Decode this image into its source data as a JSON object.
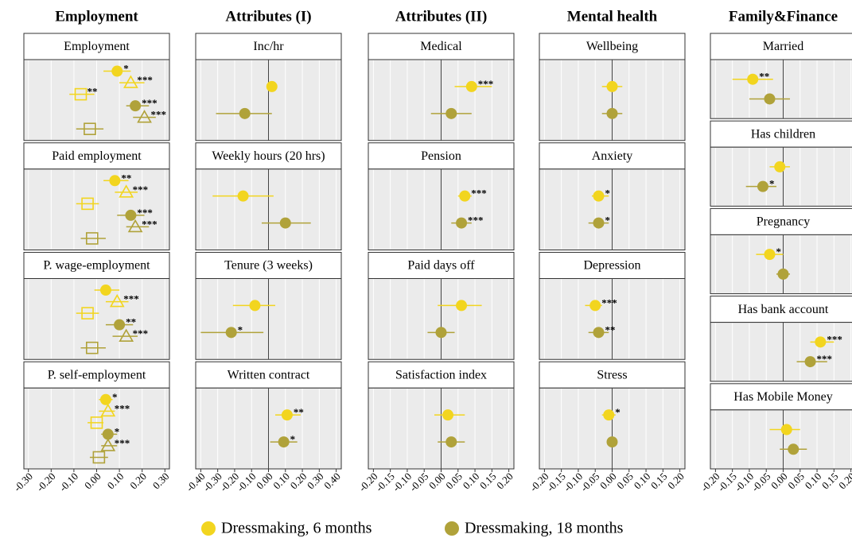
{
  "chart_data": [
    {
      "type": "dot",
      "title": "Employment",
      "zero_line": false,
      "xlim": [
        -0.32,
        0.32
      ],
      "xticks": [
        {
          "value": -0.3,
          "label": "-0.30"
        },
        {
          "value": -0.2,
          "label": "-0.20"
        },
        {
          "value": -0.1,
          "label": "-0.10"
        },
        {
          "value": 0,
          "label": "0.00"
        },
        {
          "value": 0.1,
          "label": "0.10"
        },
        {
          "value": 0.2,
          "label": "0.20"
        },
        {
          "value": 0.3,
          "label": "0.30"
        }
      ],
      "panels": [
        {
          "title": "Employment",
          "points": [
            {
              "marker": "circle",
              "color": "#f2d51f",
              "value": 0.09,
              "ci": [
                0.03,
                0.15
              ],
              "stars": "*"
            },
            {
              "marker": "triangle",
              "color": "#f2d51f",
              "value": 0.15,
              "ci": [
                0.1,
                0.21
              ],
              "stars": "***"
            },
            {
              "marker": "square",
              "color": "#f2d51f",
              "value": -0.07,
              "ci": [
                -0.12,
                -0.01
              ],
              "stars": "**"
            },
            {
              "marker": "circle",
              "color": "#b0a23a",
              "value": 0.17,
              "ci": [
                0.13,
                0.23
              ],
              "stars": "***"
            },
            {
              "marker": "triangle",
              "color": "#b0a23a",
              "value": 0.21,
              "ci": [
                0.16,
                0.26
              ],
              "stars": "***"
            },
            {
              "marker": "square",
              "color": "#b0a23a",
              "value": -0.03,
              "ci": [
                -0.09,
                0.03
              ]
            }
          ]
        },
        {
          "title": "Paid employment",
          "points": [
            {
              "marker": "circle",
              "color": "#f2d51f",
              "value": 0.08,
              "ci": [
                0.03,
                0.14
              ],
              "stars": "**"
            },
            {
              "marker": "triangle",
              "color": "#f2d51f",
              "value": 0.13,
              "ci": [
                0.08,
                0.18
              ],
              "stars": "***"
            },
            {
              "marker": "square",
              "color": "#f2d51f",
              "value": -0.04,
              "ci": [
                -0.09,
                0.01
              ]
            },
            {
              "marker": "circle",
              "color": "#b0a23a",
              "value": 0.15,
              "ci": [
                0.09,
                0.21
              ],
              "stars": "***"
            },
            {
              "marker": "triangle",
              "color": "#b0a23a",
              "value": 0.17,
              "ci": [
                0.13,
                0.23
              ],
              "stars": "***"
            },
            {
              "marker": "square",
              "color": "#b0a23a",
              "value": -0.02,
              "ci": [
                -0.07,
                0.04
              ]
            }
          ]
        },
        {
          "title": "P. wage-employment",
          "points": [
            {
              "marker": "circle",
              "color": "#f2d51f",
              "value": 0.04,
              "ci": [
                -0.01,
                0.1
              ]
            },
            {
              "marker": "triangle",
              "color": "#f2d51f",
              "value": 0.09,
              "ci": [
                0.04,
                0.14
              ],
              "stars": "***"
            },
            {
              "marker": "square",
              "color": "#f2d51f",
              "value": -0.04,
              "ci": [
                -0.09,
                0.01
              ]
            },
            {
              "marker": "circle",
              "color": "#b0a23a",
              "value": 0.1,
              "ci": [
                0.04,
                0.16
              ],
              "stars": "**"
            },
            {
              "marker": "triangle",
              "color": "#b0a23a",
              "value": 0.13,
              "ci": [
                0.07,
                0.18
              ],
              "stars": "***"
            },
            {
              "marker": "square",
              "color": "#b0a23a",
              "value": -0.02,
              "ci": [
                -0.07,
                0.04
              ]
            }
          ]
        },
        {
          "title": "P. self-employment",
          "points": [
            {
              "marker": "circle",
              "color": "#f2d51f",
              "value": 0.04,
              "ci": [
                0.01,
                0.07
              ],
              "stars": "*"
            },
            {
              "marker": "triangle",
              "color": "#f2d51f",
              "value": 0.05,
              "ci": [
                0.01,
                0.08
              ],
              "stars": "***"
            },
            {
              "marker": "square",
              "color": "#f2d51f",
              "value": 0.0,
              "ci": [
                -0.04,
                0.03
              ]
            },
            {
              "marker": "circle",
              "color": "#b0a23a",
              "value": 0.05,
              "ci": [
                0.02,
                0.09
              ],
              "stars": "*"
            },
            {
              "marker": "triangle",
              "color": "#b0a23a",
              "value": 0.05,
              "ci": [
                0.02,
                0.09
              ],
              "stars": "***"
            },
            {
              "marker": "square",
              "color": "#b0a23a",
              "value": 0.01,
              "ci": [
                -0.03,
                0.05
              ]
            }
          ]
        }
      ]
    },
    {
      "type": "dot",
      "title": "Attributes (I)",
      "zero_line": true,
      "xlim": [
        -0.43,
        0.43
      ],
      "xticks": [
        {
          "value": -0.4,
          "label": "-0.40"
        },
        {
          "value": -0.3,
          "label": "-0.30"
        },
        {
          "value": -0.2,
          "label": "-0.20"
        },
        {
          "value": -0.1,
          "label": "-0.10"
        },
        {
          "value": 0,
          "label": "0.00"
        },
        {
          "value": 0.1,
          "label": "0.10"
        },
        {
          "value": 0.2,
          "label": "0.20"
        },
        {
          "value": 0.3,
          "label": "0.30"
        },
        {
          "value": 0.4,
          "label": "0.40"
        }
      ],
      "panels": [
        {
          "title": "Inc/hr",
          "points": [
            {
              "marker": "circle",
              "color": "#f2d51f",
              "value": 0.02,
              "ci": [
                0.01,
                0.03
              ]
            },
            {
              "marker": "circle",
              "color": "#b0a23a",
              "value": -0.14,
              "ci": [
                -0.31,
                0.02
              ]
            }
          ]
        },
        {
          "title": "Weekly hours (20 hrs)",
          "points": [
            {
              "marker": "circle",
              "color": "#f2d51f",
              "value": -0.15,
              "ci": [
                -0.33,
                0.03
              ]
            },
            {
              "marker": "circle",
              "color": "#b0a23a",
              "value": 0.1,
              "ci": [
                -0.04,
                0.25
              ]
            }
          ]
        },
        {
          "title": "Tenure (3 weeks)",
          "points": [
            {
              "marker": "circle",
              "color": "#f2d51f",
              "value": -0.08,
              "ci": [
                -0.21,
                0.04
              ]
            },
            {
              "marker": "circle",
              "color": "#b0a23a",
              "value": -0.22,
              "ci": [
                -0.4,
                -0.03
              ],
              "stars": "*"
            }
          ]
        },
        {
          "title": "Written contract",
          "points": [
            {
              "marker": "circle",
              "color": "#f2d51f",
              "value": 0.11,
              "ci": [
                0.04,
                0.19
              ],
              "stars": "**"
            },
            {
              "marker": "circle",
              "color": "#b0a23a",
              "value": 0.09,
              "ci": [
                0.01,
                0.17
              ],
              "stars": "*"
            }
          ]
        }
      ]
    },
    {
      "type": "dot",
      "title": "Attributes (II)",
      "zero_line": true,
      "xlim": [
        -0.215,
        0.215
      ],
      "xticks": [
        {
          "value": -0.2,
          "label": "-0.20"
        },
        {
          "value": -0.15,
          "label": "-0.15"
        },
        {
          "value": -0.1,
          "label": "-0.10"
        },
        {
          "value": -0.05,
          "label": "-0.05"
        },
        {
          "value": 0,
          "label": "0.00"
        },
        {
          "value": 0.05,
          "label": "0.05"
        },
        {
          "value": 0.1,
          "label": "0.10"
        },
        {
          "value": 0.15,
          "label": "0.15"
        },
        {
          "value": 0.2,
          "label": "0.20"
        }
      ],
      "panels": [
        {
          "title": "Medical",
          "points": [
            {
              "marker": "circle",
              "color": "#f2d51f",
              "value": 0.09,
              "ci": [
                0.04,
                0.15
              ],
              "stars": "***"
            },
            {
              "marker": "circle",
              "color": "#b0a23a",
              "value": 0.03,
              "ci": [
                -0.03,
                0.09
              ]
            }
          ]
        },
        {
          "title": "Pension",
          "points": [
            {
              "marker": "circle",
              "color": "#f2d51f",
              "value": 0.07,
              "ci": [
                0.05,
                0.09
              ],
              "stars": "***"
            },
            {
              "marker": "circle",
              "color": "#b0a23a",
              "value": 0.06,
              "ci": [
                0.03,
                0.09
              ],
              "stars": "***"
            }
          ]
        },
        {
          "title": "Paid days off",
          "points": [
            {
              "marker": "circle",
              "color": "#f2d51f",
              "value": 0.06,
              "ci": [
                -0.01,
                0.12
              ]
            },
            {
              "marker": "circle",
              "color": "#b0a23a",
              "value": 0.0,
              "ci": [
                -0.04,
                0.04
              ]
            }
          ]
        },
        {
          "title": "Satisfaction index",
          "points": [
            {
              "marker": "circle",
              "color": "#f2d51f",
              "value": 0.02,
              "ci": [
                -0.02,
                0.07
              ]
            },
            {
              "marker": "circle",
              "color": "#b0a23a",
              "value": 0.03,
              "ci": [
                -0.01,
                0.07
              ]
            }
          ]
        }
      ]
    },
    {
      "type": "dot",
      "title": "Mental health",
      "zero_line": true,
      "xlim": [
        -0.215,
        0.215
      ],
      "xticks": [
        {
          "value": -0.2,
          "label": "-0.20"
        },
        {
          "value": -0.15,
          "label": "-0.15"
        },
        {
          "value": -0.1,
          "label": "-0.10"
        },
        {
          "value": -0.05,
          "label": "-0.05"
        },
        {
          "value": 0,
          "label": "0.00"
        },
        {
          "value": 0.05,
          "label": "0.05"
        },
        {
          "value": 0.1,
          "label": "0.10"
        },
        {
          "value": 0.15,
          "label": "0.15"
        },
        {
          "value": 0.2,
          "label": "0.20"
        }
      ],
      "panels": [
        {
          "title": "Wellbeing",
          "points": [
            {
              "marker": "circle",
              "color": "#f2d51f",
              "value": 0.0,
              "ci": [
                -0.03,
                0.03
              ]
            },
            {
              "marker": "circle",
              "color": "#b0a23a",
              "value": 0.0,
              "ci": [
                -0.03,
                0.03
              ]
            }
          ]
        },
        {
          "title": "Anxiety",
          "points": [
            {
              "marker": "circle",
              "color": "#f2d51f",
              "value": -0.04,
              "ci": [
                -0.06,
                -0.01
              ],
              "stars": "*"
            },
            {
              "marker": "circle",
              "color": "#b0a23a",
              "value": -0.04,
              "ci": [
                -0.07,
                -0.01
              ],
              "stars": "*"
            }
          ]
        },
        {
          "title": "Depression",
          "points": [
            {
              "marker": "circle",
              "color": "#f2d51f",
              "value": -0.05,
              "ci": [
                -0.08,
                -0.03
              ],
              "stars": "***"
            },
            {
              "marker": "circle",
              "color": "#b0a23a",
              "value": -0.04,
              "ci": [
                -0.07,
                -0.01
              ],
              "stars": "**"
            }
          ]
        },
        {
          "title": "Stress",
          "points": [
            {
              "marker": "circle",
              "color": "#f2d51f",
              "value": -0.01,
              "ci": [
                -0.03,
                0.01
              ],
              "stars": "*"
            },
            {
              "marker": "circle",
              "color": "#b0a23a",
              "value": 0.0,
              "ci": [
                -0.01,
                0.01
              ]
            }
          ]
        }
      ]
    },
    {
      "type": "dot",
      "title": "Family&Finance",
      "zero_line": true,
      "xlim": [
        -0.215,
        0.215
      ],
      "xticks": [
        {
          "value": -0.2,
          "label": "-0.20"
        },
        {
          "value": -0.15,
          "label": "-0.15"
        },
        {
          "value": -0.1,
          "label": "-0.10"
        },
        {
          "value": -0.05,
          "label": "-0.05"
        },
        {
          "value": 0,
          "label": "0.00"
        },
        {
          "value": 0.05,
          "label": "0.05"
        },
        {
          "value": 0.1,
          "label": "0.10"
        },
        {
          "value": 0.15,
          "label": "0.15"
        },
        {
          "value": 0.2,
          "label": "0.20"
        }
      ],
      "panels": [
        {
          "title": "Married",
          "points": [
            {
              "marker": "circle",
              "color": "#f2d51f",
              "value": -0.09,
              "ci": [
                -0.15,
                -0.03
              ],
              "stars": "**"
            },
            {
              "marker": "circle",
              "color": "#b0a23a",
              "value": -0.04,
              "ci": [
                -0.1,
                0.02
              ]
            }
          ]
        },
        {
          "title": "Has children",
          "points": [
            {
              "marker": "circle",
              "color": "#f2d51f",
              "value": -0.01,
              "ci": [
                -0.04,
                0.02
              ]
            },
            {
              "marker": "circle",
              "color": "#b0a23a",
              "value": -0.06,
              "ci": [
                -0.11,
                -0.02
              ],
              "stars": "*"
            }
          ]
        },
        {
          "title": "Pregnancy",
          "points": [
            {
              "marker": "circle",
              "color": "#f2d51f",
              "value": -0.04,
              "ci": [
                -0.08,
                0.0
              ],
              "stars": "*"
            },
            {
              "marker": "circle",
              "color": "#b0a23a",
              "value": 0.0,
              "ci": [
                -0.02,
                0.02
              ]
            }
          ]
        },
        {
          "title": "Has bank account",
          "points": [
            {
              "marker": "circle",
              "color": "#f2d51f",
              "value": 0.11,
              "ci": [
                0.08,
                0.15
              ],
              "stars": "***"
            },
            {
              "marker": "circle",
              "color": "#b0a23a",
              "value": 0.08,
              "ci": [
                0.04,
                0.13
              ],
              "stars": "***"
            }
          ]
        },
        {
          "title": "Has Mobile Money",
          "points": [
            {
              "marker": "circle",
              "color": "#f2d51f",
              "value": 0.01,
              "ci": [
                -0.04,
                0.05
              ]
            },
            {
              "marker": "circle",
              "color": "#b0a23a",
              "value": 0.03,
              "ci": [
                -0.01,
                0.07
              ]
            }
          ]
        }
      ]
    }
  ],
  "legend": [
    {
      "name": "Dressmaking, 6 months",
      "color": "#f2d51f"
    },
    {
      "name": "Dressmaking, 18 months",
      "color": "#b0a23a"
    }
  ]
}
